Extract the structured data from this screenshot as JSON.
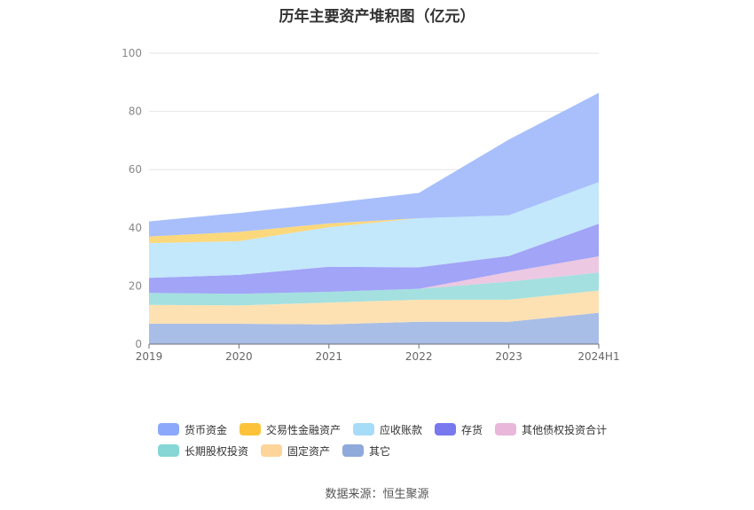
{
  "chart_data": {
    "type": "area",
    "title": "历年主要资产堆积图（亿元）",
    "categories": [
      "2019",
      "2020",
      "2021",
      "2022",
      "2023",
      "2024H1"
    ],
    "ylim": [
      0,
      100
    ],
    "yticks": [
      0,
      20,
      40,
      60,
      80,
      100
    ],
    "stacked": true,
    "grid": true,
    "legend_position": "bottom",
    "series": [
      {
        "name": "其它",
        "color": "#a9bee6",
        "values": [
          7.0,
          7.0,
          6.8,
          7.7,
          7.7,
          10.8
        ]
      },
      {
        "name": "固定资产",
        "color": "#fde1b3",
        "values": [
          6.5,
          6.3,
          7.5,
          7.6,
          7.6,
          7.6
        ]
      },
      {
        "name": "长期股权投资",
        "color": "#a4e0df",
        "values": [
          4.1,
          4.0,
          3.7,
          3.7,
          6.2,
          6.2
        ]
      },
      {
        "name": "其他债权投资合计",
        "color": "#ecc8e2",
        "values": [
          0.0,
          0.0,
          0.0,
          0.0,
          3.3,
          5.6
        ]
      },
      {
        "name": "存货",
        "color": "#a1a4f7",
        "values": [
          5.2,
          6.5,
          8.6,
          7.4,
          5.5,
          11.2
        ]
      },
      {
        "name": "应收账款",
        "color": "#c3e7fb",
        "values": [
          11.9,
          11.6,
          13.6,
          16.9,
          14.0,
          14.3
        ]
      },
      {
        "name": "交易性金融资产",
        "color": "#fcd87c",
        "values": [
          2.3,
          3.2,
          1.3,
          0.0,
          0.0,
          0.0
        ]
      },
      {
        "name": "货币资金",
        "color": "#a8bffc",
        "values": [
          5.2,
          6.5,
          6.9,
          8.7,
          26.0,
          30.7
        ]
      }
    ]
  },
  "legend": [
    {
      "name": "货币资金",
      "color": "#8ba8fa"
    },
    {
      "name": "交易性金融资产",
      "color": "#fcc33a"
    },
    {
      "name": "应收账款",
      "color": "#a7dcf8"
    },
    {
      "name": "存货",
      "color": "#7878ef"
    },
    {
      "name": "其他债权投资合计",
      "color": "#e8b7da"
    },
    {
      "name": "长期股权投资",
      "color": "#86d6d6"
    },
    {
      "name": "固定资产",
      "color": "#fdd49a"
    },
    {
      "name": "其它",
      "color": "#8fa9db"
    }
  ],
  "source": "数据来源：恒生聚源"
}
